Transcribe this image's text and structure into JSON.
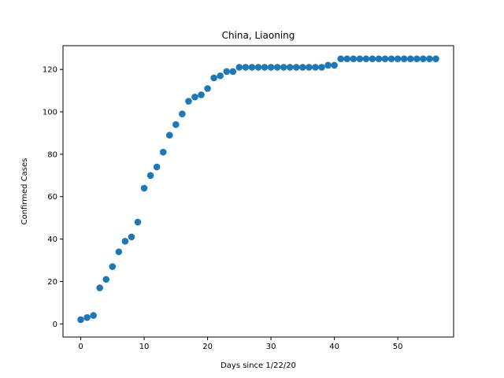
{
  "chart_data": {
    "type": "scatter",
    "title": "China, Liaoning",
    "xlabel": "Days since 1/22/20",
    "ylabel": "Confirmed Cases",
    "xlim": [
      -2.8,
      58.8
    ],
    "ylim": [
      -6.2,
      131.2
    ],
    "xticks": [
      0,
      10,
      20,
      30,
      40,
      50
    ],
    "yticks": [
      0,
      20,
      40,
      60,
      80,
      100,
      120
    ],
    "grid": false,
    "marker_color": "#1f77b4",
    "series": [
      {
        "x": [
          0,
          1,
          2,
          3,
          4,
          5,
          6,
          7,
          8,
          9,
          10,
          11,
          12,
          13,
          14,
          15,
          16,
          17,
          18,
          19,
          20,
          21,
          22,
          23,
          24,
          25,
          26,
          27,
          28,
          29,
          30,
          31,
          32,
          33,
          34,
          35,
          36,
          37,
          38,
          39,
          40,
          41,
          42,
          43,
          44,
          45,
          46,
          47,
          48,
          49,
          50,
          51,
          52,
          53,
          54,
          55,
          56
        ],
        "y": [
          2,
          3,
          4,
          17,
          21,
          27,
          34,
          39,
          41,
          48,
          64,
          70,
          74,
          81,
          89,
          94,
          99,
          105,
          107,
          108,
          111,
          116,
          117,
          119,
          119,
          121,
          121,
          121,
          121,
          121,
          121,
          121,
          121,
          121,
          121,
          121,
          121,
          121,
          121,
          122,
          122,
          125,
          125,
          125,
          125,
          125,
          125,
          125,
          125,
          125,
          125,
          125,
          125,
          125,
          125,
          125,
          125
        ]
      }
    ]
  }
}
